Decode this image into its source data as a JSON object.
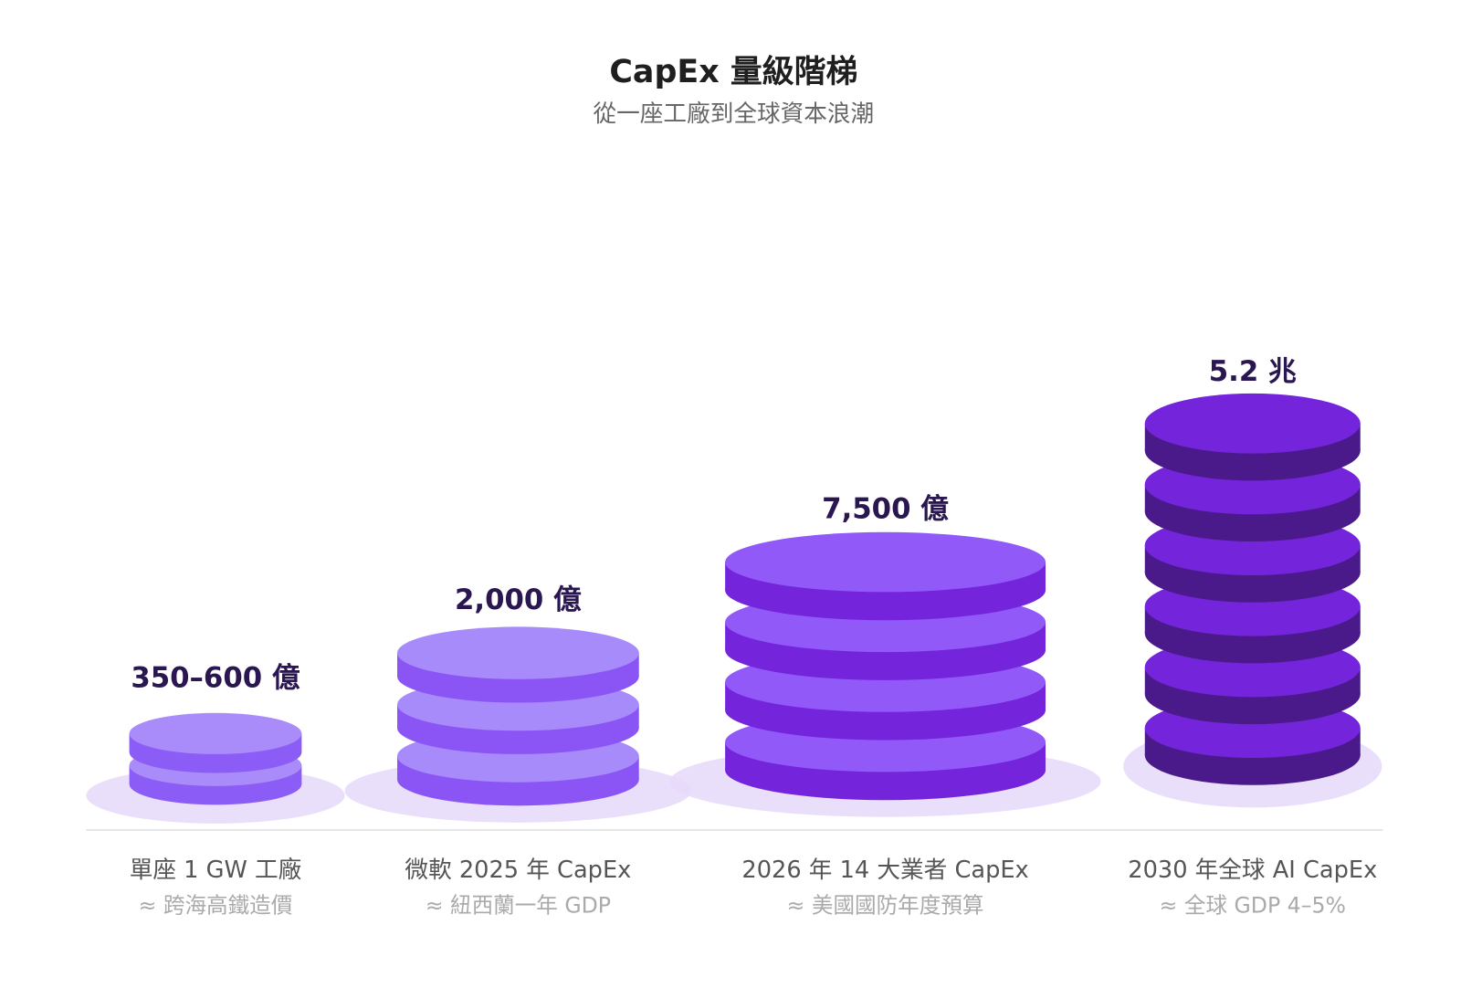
{
  "header": {
    "title": "CapEx 量級階梯",
    "subtitle": "從一座工廠到全球資本浪潮"
  },
  "columns": [
    {
      "value_label": "350–600 億",
      "name": "單座 1 GW 工廠",
      "comparison": "≈ 跨海高鐵造價"
    },
    {
      "value_label": "2,000 億",
      "name": "微軟 2025 年 CapEx",
      "comparison": "≈ 紐西蘭一年 GDP"
    },
    {
      "value_label": "7,500 億",
      "name": "2026 年 14 大業者 CapEx",
      "comparison": "≈ 美國國防年度預算"
    },
    {
      "value_label": "5.2 兆",
      "name": "2030 年全球 AI CapEx",
      "comparison": "≈ 全球 GDP 4–5%"
    }
  ]
}
